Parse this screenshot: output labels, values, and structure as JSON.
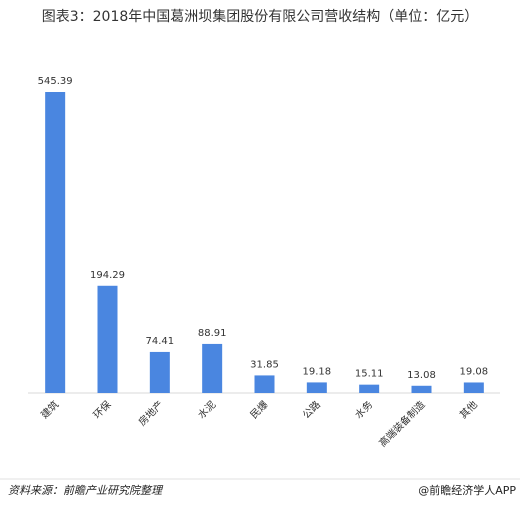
{
  "chart_data": {
    "type": "bar",
    "title": "图表3：2018年中国葛洲坝集团股份有限公司营收结构（单位：亿元）",
    "categories": [
      "建筑",
      "环保",
      "房地产",
      "水泥",
      "民爆",
      "公路",
      "水务",
      "高端装备制造",
      "其他"
    ],
    "values": [
      545.39,
      194.29,
      74.41,
      88.91,
      31.85,
      19.18,
      15.11,
      13.08,
      19.08
    ],
    "color": "#4a86e0"
  },
  "footer": {
    "source": "资料来源：前瞻产业研究院整理",
    "brand": "@前瞻经济学人APP"
  }
}
